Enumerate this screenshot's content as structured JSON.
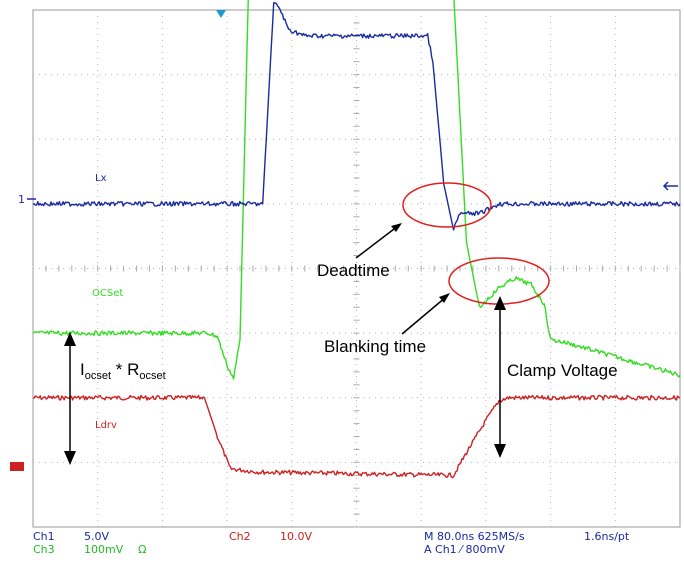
{
  "chart_data": {
    "type": "line",
    "title": "",
    "xlabel": "",
    "ylabel": "",
    "grid": true,
    "divisions": {
      "x": 10,
      "y": 8
    },
    "xlim": [
      0,
      10
    ],
    "ylim": [
      -4,
      4
    ],
    "series": [
      {
        "name": "Lx",
        "color": "#1a2aa0",
        "x": [
          0,
          3.4,
          3.55,
          3.72,
          3.8,
          3.95,
          4.2,
          6.1,
          6.18,
          6.35,
          6.5,
          6.6,
          6.9,
          7.2,
          10
        ],
        "y": [
          1.0,
          1.0,
          1.0,
          4.1,
          4.05,
          3.7,
          3.6,
          3.6,
          3.2,
          1.3,
          0.6,
          0.85,
          0.85,
          1.0,
          1.0
        ]
      },
      {
        "name": "OCSet",
        "color": "#33dd22",
        "x": [
          0,
          2.7,
          2.85,
          3.0,
          3.1,
          3.2,
          3.33,
          6.5,
          6.7,
          6.9,
          7.2,
          7.45,
          7.7,
          7.9,
          8.0,
          8.25,
          10
        ],
        "y": [
          -1.0,
          -1.0,
          -1.05,
          -1.5,
          -1.7,
          -1.1,
          4.3,
          4.3,
          0.4,
          -0.6,
          -0.3,
          -0.15,
          -0.25,
          -0.55,
          -1.1,
          -1.15,
          -1.65
        ]
      },
      {
        "name": "Ldrv",
        "color": "#cc2222",
        "x": [
          0,
          2.65,
          2.85,
          3.05,
          3.5,
          6.5,
          6.7,
          7.0,
          7.2,
          7.35,
          10
        ],
        "y": [
          -2.0,
          -2.0,
          -2.6,
          -3.1,
          -3.15,
          -3.2,
          -2.85,
          -2.35,
          -2.05,
          -2.0,
          -2.0
        ]
      }
    ],
    "trace_labels": [
      "Lx",
      "OCSet",
      "Ldrv"
    ],
    "channel_marker": "1",
    "annotations": {
      "deadtime": "Deadtime",
      "blanking": "Blanking time",
      "clamp": "Clamp Voltage",
      "ocset": {
        "main1": "I",
        "sub1": "ocset",
        "mid": " * R",
        "sub2": "ocset"
      }
    }
  },
  "status": {
    "ch1": "Ch1",
    "ch1_scale": "5.0V",
    "ch3": "Ch3",
    "ch3_scale": "100mV",
    "ch3_ohm": "Ω",
    "ch2": "Ch2",
    "ch2_scale": "10.0V",
    "timebase": "M 80.0ns 625MS/s",
    "rate": "1.6ns/pt",
    "trigger": "A  Ch1  ⁄  800mV"
  }
}
